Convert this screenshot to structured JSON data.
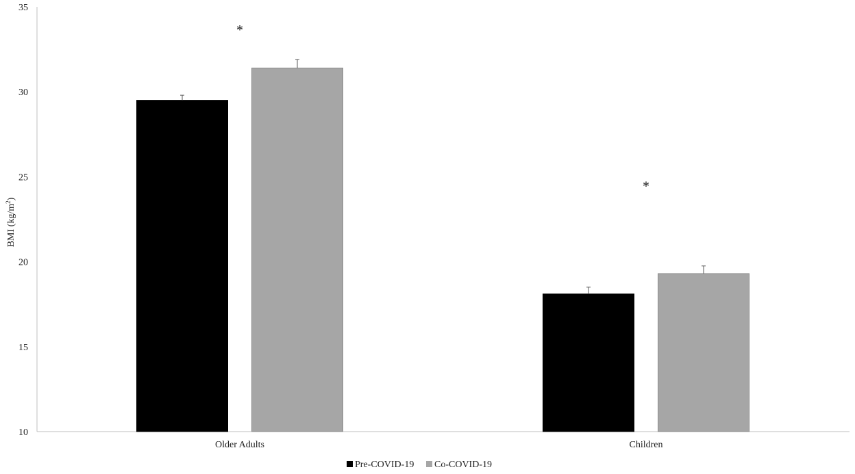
{
  "chart_data": {
    "type": "bar",
    "ylabel": "BMI (kg/m²)",
    "ylabel_base": "BMI (kg/m",
    "ylabel_sup": "2",
    "ylabel_close": ")",
    "ylim": [
      10,
      35
    ],
    "yticks": [
      "10",
      "15",
      "20",
      "25",
      "30",
      "35"
    ],
    "categories": [
      "Older Adults",
      "Children"
    ],
    "series": [
      {
        "name": "Pre-COVID-19",
        "color": "#000000",
        "values": [
          29.5,
          18.1
        ],
        "errors": [
          0.3,
          0.4
        ]
      },
      {
        "name": "Co-COVID-19",
        "color": "#a6a6a6",
        "values": [
          31.4,
          19.3
        ],
        "errors": [
          0.5,
          0.45
        ]
      }
    ],
    "annotations": [
      {
        "category": 0,
        "text": "*",
        "y": 33.8
      },
      {
        "category": 1,
        "text": "*",
        "y": 24.6
      }
    ],
    "legend_position": "bottom",
    "grid": false
  }
}
